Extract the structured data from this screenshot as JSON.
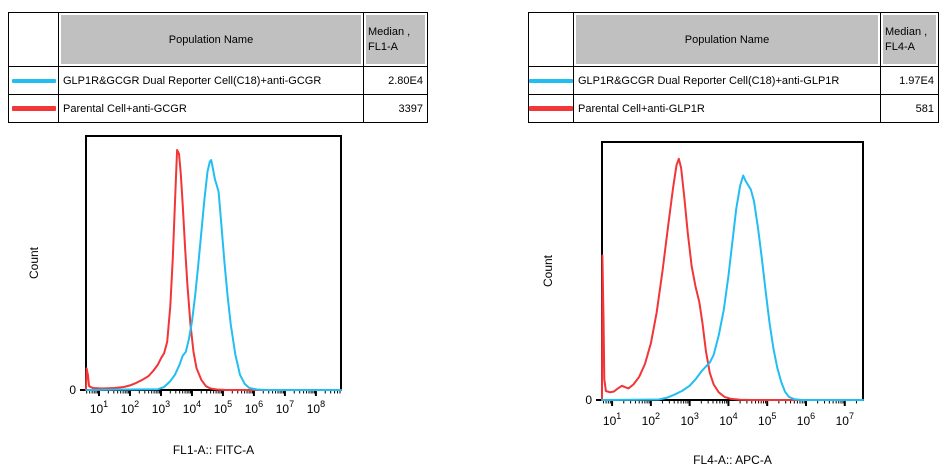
{
  "colors": {
    "cyan": "#22BEF2",
    "red": "#F23537",
    "table_header_bg": "#C0C0C0",
    "axis": "#000000",
    "background": "#FFFFFF"
  },
  "panels": [
    {
      "table": {
        "population_header": "Population Name",
        "median_header_line1": "Median ,",
        "median_header_line2": "FL1-A",
        "rows": [
          {
            "color_key": "cyan",
            "population": "GLP1R&GCGR Dual Reporter Cell(C18)+anti-GCGR",
            "median": "2.80E4"
          },
          {
            "color_key": "red",
            "population": "Parental Cell+anti-GCGR",
            "median": "3397"
          }
        ]
      }
    },
    {
      "table": {
        "population_header": "Population Name",
        "median_header_line1": "Median ,",
        "median_header_line2": "FL4-A",
        "rows": [
          {
            "color_key": "cyan",
            "population": "GLP1R&GCGR Dual Reporter Cell(C18)+anti-GLP1R",
            "median": "1.97E4"
          },
          {
            "color_key": "red",
            "population": "Parental Cell+anti-GLP1R",
            "median": "581"
          }
        ]
      }
    }
  ],
  "chart_data": [
    {
      "type": "line",
      "subtype": "flow-cytometry-histogram",
      "title": "",
      "xlabel": "FL1-A:: FITC-A",
      "ylabel": "Count",
      "x_scale": "log10",
      "x_domain_log": [
        0.58,
        8.81
      ],
      "x_ticks_log": [
        1,
        2,
        3,
        4,
        5,
        6,
        7,
        8
      ],
      "x_tick_base": "10",
      "y_zero_label": "0",
      "grid": false,
      "legend": "table-above",
      "series": [
        {
          "name": "GLP1R&GCGR Dual Reporter Cell(C18)+anti-GCGR",
          "color_key": "cyan",
          "median": "2.80E4",
          "peak_log10_x": 4.62,
          "curve_logx_yfrac": [
            [
              0.6,
              0
            ],
            [
              2.9,
              0.003
            ],
            [
              3.1,
              0.012
            ],
            [
              3.3,
              0.035
            ],
            [
              3.45,
              0.06
            ],
            [
              3.6,
              0.1
            ],
            [
              3.7,
              0.135
            ],
            [
              3.8,
              0.15
            ],
            [
              3.9,
              0.2
            ],
            [
              4.0,
              0.27
            ],
            [
              4.1,
              0.37
            ],
            [
              4.2,
              0.49
            ],
            [
              4.3,
              0.62
            ],
            [
              4.4,
              0.75
            ],
            [
              4.5,
              0.86
            ],
            [
              4.58,
              0.9
            ],
            [
              4.62,
              0.905
            ],
            [
              4.68,
              0.87
            ],
            [
              4.74,
              0.83
            ],
            [
              4.8,
              0.805
            ],
            [
              4.86,
              0.78
            ],
            [
              4.95,
              0.65
            ],
            [
              5.05,
              0.5
            ],
            [
              5.15,
              0.37
            ],
            [
              5.25,
              0.26
            ],
            [
              5.4,
              0.14
            ],
            [
              5.55,
              0.06
            ],
            [
              5.7,
              0.025
            ],
            [
              5.85,
              0.008
            ],
            [
              6.1,
              0.002
            ],
            [
              6.4,
              0
            ],
            [
              8.81,
              0
            ]
          ]
        },
        {
          "name": "Parental Cell+anti-GCGR",
          "color_key": "red",
          "median": "3397",
          "peak_log10_x": 3.52,
          "curve_logx_yfrac": [
            [
              0.58,
              0
            ],
            [
              0.6,
              0.085
            ],
            [
              0.64,
              0.06
            ],
            [
              0.68,
              0.015
            ],
            [
              0.8,
              0.008
            ],
            [
              1.1,
              0.006
            ],
            [
              1.5,
              0.008
            ],
            [
              1.8,
              0.012
            ],
            [
              2.0,
              0.018
            ],
            [
              2.2,
              0.028
            ],
            [
              2.4,
              0.04
            ],
            [
              2.6,
              0.055
            ],
            [
              2.75,
              0.075
            ],
            [
              2.9,
              0.1
            ],
            [
              3.0,
              0.125
            ],
            [
              3.1,
              0.145
            ],
            [
              3.2,
              0.19
            ],
            [
              3.3,
              0.33
            ],
            [
              3.38,
              0.52
            ],
            [
              3.44,
              0.7
            ],
            [
              3.48,
              0.83
            ],
            [
              3.52,
              0.945
            ],
            [
              3.58,
              0.93
            ],
            [
              3.64,
              0.85
            ],
            [
              3.7,
              0.73
            ],
            [
              3.78,
              0.56
            ],
            [
              3.85,
              0.42
            ],
            [
              3.95,
              0.26
            ],
            [
              4.05,
              0.15
            ],
            [
              4.15,
              0.085
            ],
            [
              4.3,
              0.04
            ],
            [
              4.45,
              0.015
            ],
            [
              4.6,
              0.006
            ],
            [
              4.8,
              0.002
            ],
            [
              5.1,
              0
            ],
            [
              8.81,
              0
            ]
          ]
        }
      ]
    },
    {
      "type": "line",
      "subtype": "flow-cytometry-histogram",
      "title": "",
      "xlabel": "FL4-A:: APC-A",
      "ylabel": "Count",
      "x_scale": "log10",
      "x_domain_log": [
        0.74,
        7.47
      ],
      "x_ticks_log": [
        1,
        2,
        3,
        4,
        5,
        6,
        7
      ],
      "x_tick_base": "10",
      "y_zero_label": "0",
      "grid": false,
      "legend": "table-above",
      "series": [
        {
          "name": "GLP1R&GCGR Dual Reporter Cell(C18)+anti-GLP1R",
          "color_key": "cyan",
          "median": "1.97E4",
          "peak_log10_x": 4.38,
          "curve_logx_yfrac": [
            [
              0.74,
              0
            ],
            [
              2.2,
              0.002
            ],
            [
              2.4,
              0.008
            ],
            [
              2.6,
              0.02
            ],
            [
              2.8,
              0.035
            ],
            [
              3.0,
              0.055
            ],
            [
              3.15,
              0.08
            ],
            [
              3.3,
              0.11
            ],
            [
              3.42,
              0.13
            ],
            [
              3.52,
              0.145
            ],
            [
              3.62,
              0.175
            ],
            [
              3.75,
              0.25
            ],
            [
              3.88,
              0.35
            ],
            [
              4.0,
              0.48
            ],
            [
              4.1,
              0.61
            ],
            [
              4.2,
              0.74
            ],
            [
              4.3,
              0.83
            ],
            [
              4.38,
              0.87
            ],
            [
              4.44,
              0.85
            ],
            [
              4.52,
              0.83
            ],
            [
              4.58,
              0.815
            ],
            [
              4.66,
              0.77
            ],
            [
              4.76,
              0.67
            ],
            [
              4.86,
              0.55
            ],
            [
              4.96,
              0.42
            ],
            [
              5.06,
              0.3
            ],
            [
              5.16,
              0.2
            ],
            [
              5.26,
              0.125
            ],
            [
              5.36,
              0.07
            ],
            [
              5.46,
              0.032
            ],
            [
              5.56,
              0.012
            ],
            [
              5.7,
              0.003
            ],
            [
              5.9,
              0
            ],
            [
              7.47,
              0
            ]
          ]
        },
        {
          "name": "Parental Cell+anti-GLP1R",
          "color_key": "red",
          "median": "581",
          "peak_log10_x": 2.72,
          "curve_logx_yfrac": [
            [
              0.74,
              0
            ],
            [
              0.75,
              0.56
            ],
            [
              0.78,
              0.3
            ],
            [
              0.8,
              0.08
            ],
            [
              0.84,
              0.035
            ],
            [
              0.95,
              0.03
            ],
            [
              1.05,
              0.033
            ],
            [
              1.15,
              0.045
            ],
            [
              1.25,
              0.055
            ],
            [
              1.33,
              0.05
            ],
            [
              1.42,
              0.045
            ],
            [
              1.55,
              0.06
            ],
            [
              1.7,
              0.09
            ],
            [
              1.85,
              0.14
            ],
            [
              2.0,
              0.22
            ],
            [
              2.15,
              0.34
            ],
            [
              2.3,
              0.5
            ],
            [
              2.45,
              0.68
            ],
            [
              2.57,
              0.82
            ],
            [
              2.66,
              0.91
            ],
            [
              2.72,
              0.935
            ],
            [
              2.78,
              0.9
            ],
            [
              2.86,
              0.79
            ],
            [
              2.95,
              0.65
            ],
            [
              3.05,
              0.52
            ],
            [
              3.15,
              0.44
            ],
            [
              3.25,
              0.38
            ],
            [
              3.33,
              0.3
            ],
            [
              3.42,
              0.19
            ],
            [
              3.52,
              0.105
            ],
            [
              3.62,
              0.06
            ],
            [
              3.75,
              0.03
            ],
            [
              3.9,
              0.012
            ],
            [
              4.05,
              0.005
            ],
            [
              4.3,
              0.001
            ],
            [
              4.6,
              0
            ],
            [
              7.47,
              0
            ]
          ]
        }
      ]
    }
  ]
}
